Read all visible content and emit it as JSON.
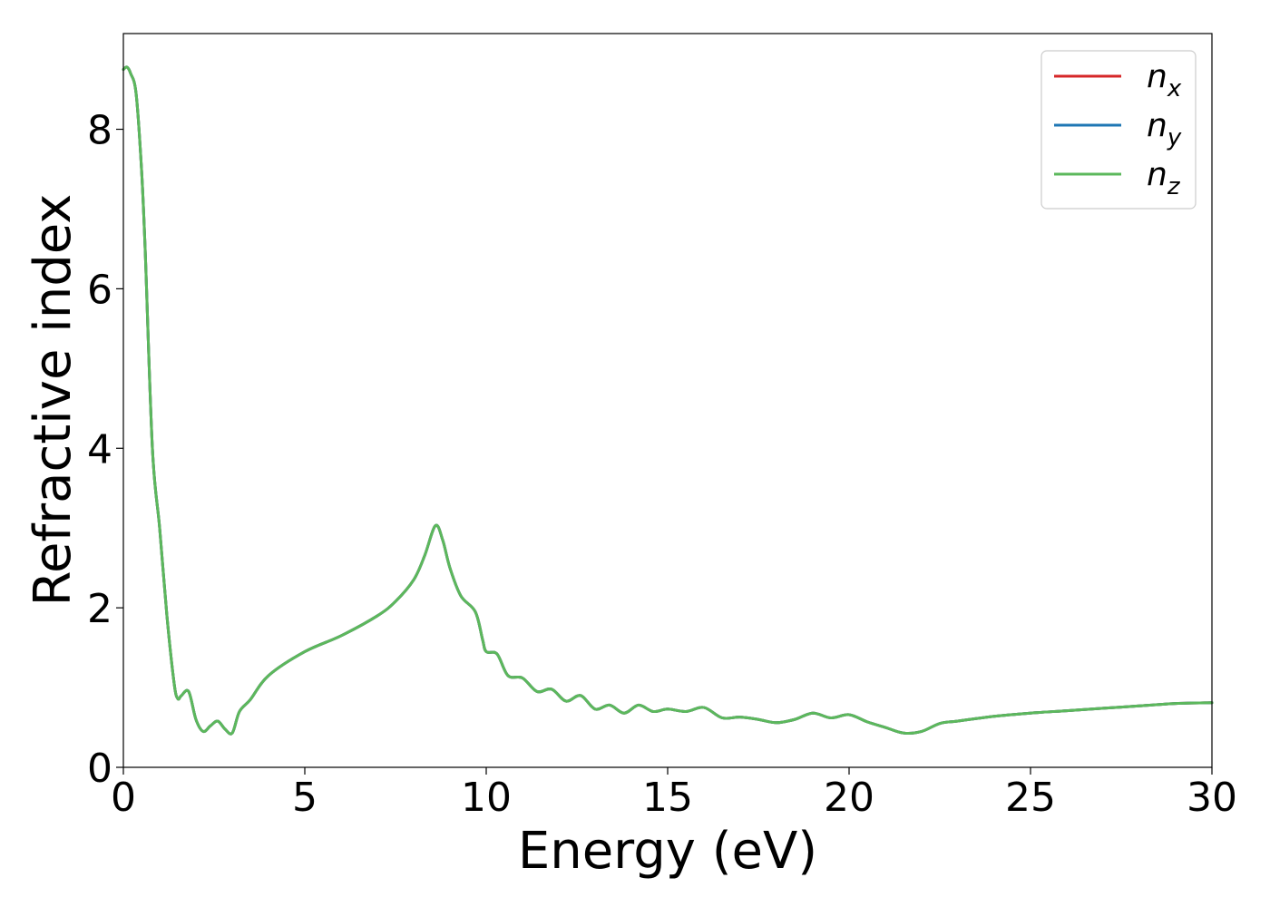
{
  "chart_data": {
    "type": "line",
    "xlabel": "Energy (eV)",
    "ylabel": "Refractive index",
    "xlim": [
      0,
      30
    ],
    "ylim": [
      0,
      9.2
    ],
    "xticks": [
      "0",
      "5",
      "10",
      "15",
      "20",
      "25",
      "30"
    ],
    "yticks": [
      "0",
      "2",
      "4",
      "6",
      "8"
    ],
    "grid": false,
    "legend_position": "top-right",
    "series": [
      {
        "name": "n_x",
        "label_main": "n",
        "label_sub": "x",
        "color": "#d62728",
        "x": [
          0,
          0.1,
          0.2,
          0.35,
          0.5,
          0.6,
          0.8,
          1.0,
          1.2,
          1.4,
          1.5,
          1.6,
          1.8,
          2.0,
          2.2,
          2.4,
          2.6,
          2.8,
          3.0,
          3.2,
          3.5,
          4.0,
          5.0,
          6.0,
          7.0,
          7.5,
          8.0,
          8.3,
          8.6,
          8.8,
          9.0,
          9.3,
          9.7,
          9.9,
          10.0,
          10.3,
          10.6,
          11.0,
          11.4,
          11.8,
          12.2,
          12.6,
          13.0,
          13.4,
          13.8,
          14.2,
          14.6,
          15.0,
          15.5,
          16.0,
          16.5,
          17.0,
          17.5,
          18.0,
          18.5,
          19.0,
          19.5,
          20.0,
          20.5,
          21.0,
          21.5,
          22.0,
          22.5,
          23.0,
          24.0,
          25.0,
          26.0,
          27.0,
          28.0,
          29.0,
          30.0
        ],
        "y": [
          8.75,
          8.78,
          8.7,
          8.45,
          7.5,
          6.5,
          4.0,
          3.0,
          1.9,
          1.05,
          0.86,
          0.9,
          0.95,
          0.6,
          0.45,
          0.52,
          0.58,
          0.48,
          0.43,
          0.7,
          0.85,
          1.15,
          1.45,
          1.65,
          1.9,
          2.08,
          2.35,
          2.65,
          3.03,
          2.85,
          2.5,
          2.15,
          1.95,
          1.6,
          1.45,
          1.42,
          1.15,
          1.12,
          0.95,
          0.98,
          0.83,
          0.9,
          0.73,
          0.78,
          0.68,
          0.78,
          0.7,
          0.73,
          0.7,
          0.75,
          0.62,
          0.63,
          0.6,
          0.56,
          0.6,
          0.68,
          0.62,
          0.66,
          0.57,
          0.5,
          0.43,
          0.45,
          0.55,
          0.58,
          0.64,
          0.68,
          0.71,
          0.74,
          0.77,
          0.8,
          0.81
        ]
      },
      {
        "name": "n_y",
        "label_main": "n",
        "label_sub": "y",
        "color": "#1f77b4",
        "x": [
          0,
          0.1,
          0.2,
          0.35,
          0.5,
          0.6,
          0.8,
          1.0,
          1.2,
          1.4,
          1.5,
          1.6,
          1.8,
          2.0,
          2.2,
          2.4,
          2.6,
          2.8,
          3.0,
          3.2,
          3.5,
          4.0,
          5.0,
          6.0,
          7.0,
          7.5,
          8.0,
          8.3,
          8.6,
          8.8,
          9.0,
          9.3,
          9.7,
          9.9,
          10.0,
          10.3,
          10.6,
          11.0,
          11.4,
          11.8,
          12.2,
          12.6,
          13.0,
          13.4,
          13.8,
          14.2,
          14.6,
          15.0,
          15.5,
          16.0,
          16.5,
          17.0,
          17.5,
          18.0,
          18.5,
          19.0,
          19.5,
          20.0,
          20.5,
          21.0,
          21.5,
          22.0,
          22.5,
          23.0,
          24.0,
          25.0,
          26.0,
          27.0,
          28.0,
          29.0,
          30.0
        ],
        "y": [
          8.75,
          8.78,
          8.7,
          8.45,
          7.5,
          6.5,
          4.0,
          3.0,
          1.9,
          1.05,
          0.86,
          0.9,
          0.95,
          0.6,
          0.45,
          0.52,
          0.58,
          0.48,
          0.43,
          0.7,
          0.85,
          1.15,
          1.45,
          1.65,
          1.9,
          2.08,
          2.35,
          2.65,
          3.03,
          2.85,
          2.5,
          2.15,
          1.95,
          1.6,
          1.45,
          1.42,
          1.15,
          1.12,
          0.95,
          0.98,
          0.83,
          0.9,
          0.73,
          0.78,
          0.68,
          0.78,
          0.7,
          0.73,
          0.7,
          0.75,
          0.62,
          0.63,
          0.6,
          0.56,
          0.6,
          0.68,
          0.62,
          0.66,
          0.57,
          0.5,
          0.43,
          0.45,
          0.55,
          0.58,
          0.64,
          0.68,
          0.71,
          0.74,
          0.77,
          0.8,
          0.81
        ]
      },
      {
        "name": "n_z",
        "label_main": "n",
        "label_sub": "z",
        "color": "#5cb85c",
        "x": [
          0,
          0.1,
          0.2,
          0.35,
          0.5,
          0.6,
          0.8,
          1.0,
          1.2,
          1.4,
          1.5,
          1.6,
          1.8,
          2.0,
          2.2,
          2.4,
          2.6,
          2.8,
          3.0,
          3.2,
          3.5,
          4.0,
          5.0,
          6.0,
          7.0,
          7.5,
          8.0,
          8.3,
          8.6,
          8.8,
          9.0,
          9.3,
          9.7,
          9.9,
          10.0,
          10.3,
          10.6,
          11.0,
          11.4,
          11.8,
          12.2,
          12.6,
          13.0,
          13.4,
          13.8,
          14.2,
          14.6,
          15.0,
          15.5,
          16.0,
          16.5,
          17.0,
          17.5,
          18.0,
          18.5,
          19.0,
          19.5,
          20.0,
          20.5,
          21.0,
          21.5,
          22.0,
          22.5,
          23.0,
          24.0,
          25.0,
          26.0,
          27.0,
          28.0,
          29.0,
          30.0
        ],
        "y": [
          8.75,
          8.78,
          8.7,
          8.45,
          7.5,
          6.5,
          4.0,
          3.0,
          1.9,
          1.05,
          0.86,
          0.9,
          0.95,
          0.6,
          0.45,
          0.52,
          0.58,
          0.48,
          0.43,
          0.7,
          0.85,
          1.15,
          1.45,
          1.65,
          1.9,
          2.08,
          2.35,
          2.65,
          3.03,
          2.85,
          2.5,
          2.15,
          1.95,
          1.6,
          1.45,
          1.42,
          1.15,
          1.12,
          0.95,
          0.98,
          0.83,
          0.9,
          0.73,
          0.78,
          0.68,
          0.78,
          0.7,
          0.73,
          0.7,
          0.75,
          0.62,
          0.63,
          0.6,
          0.56,
          0.6,
          0.68,
          0.62,
          0.66,
          0.57,
          0.5,
          0.43,
          0.45,
          0.55,
          0.58,
          0.64,
          0.68,
          0.71,
          0.74,
          0.77,
          0.8,
          0.81
        ]
      }
    ]
  }
}
